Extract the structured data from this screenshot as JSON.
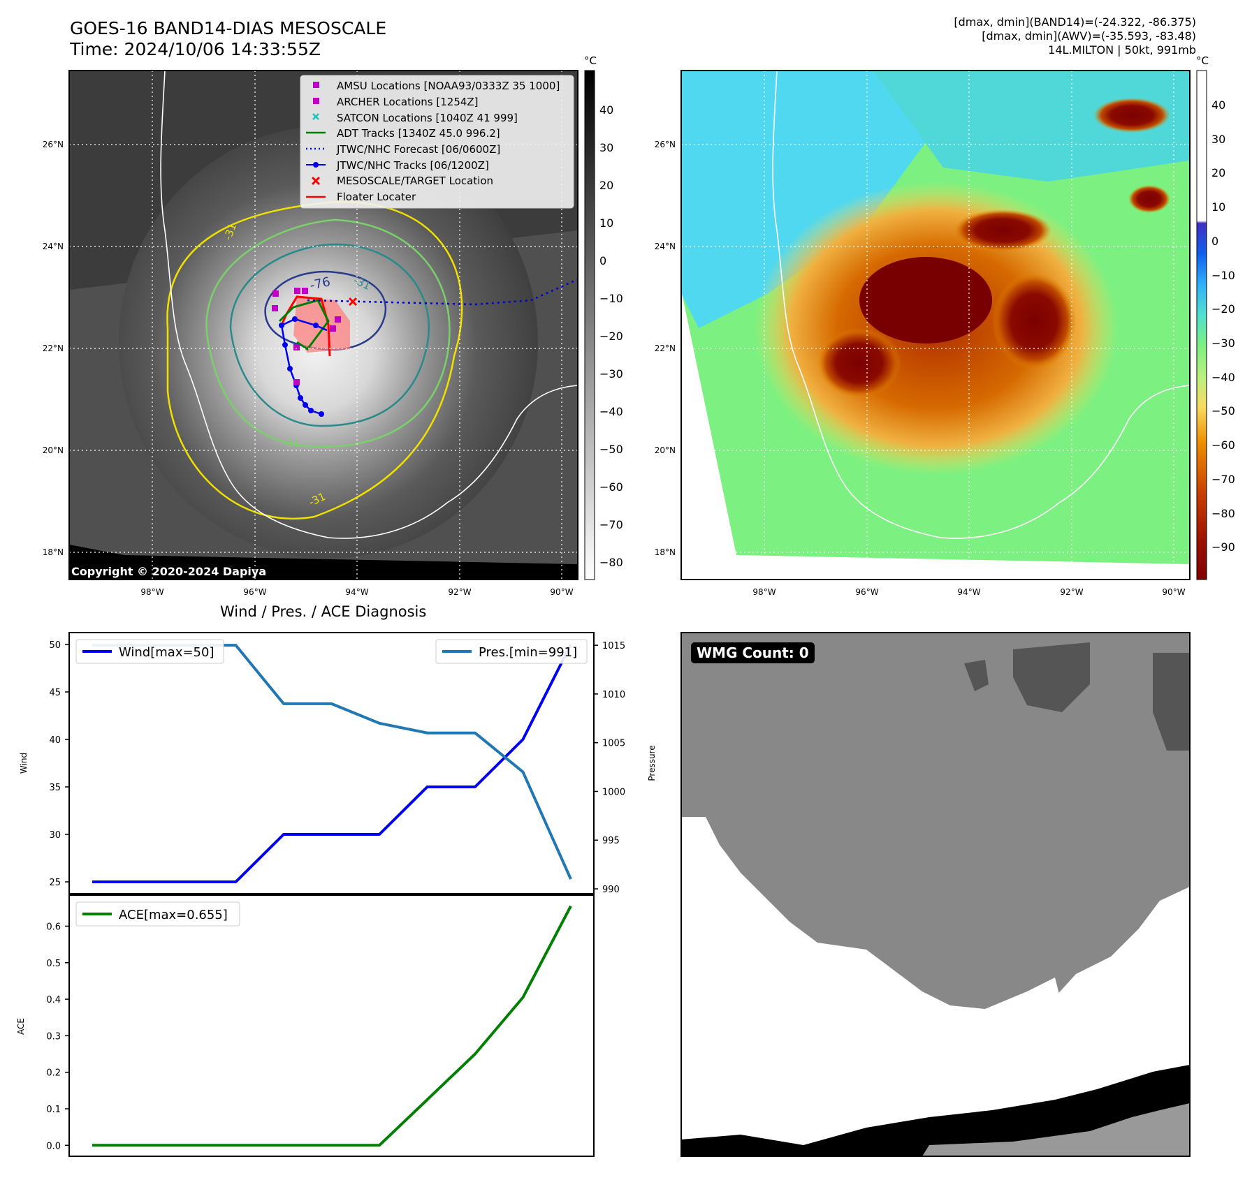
{
  "header": {
    "title_line1": "GOES-16 BAND14-DIAS MESOSCALE",
    "title_line2": "Time: 2024/10/06 14:33:55Z",
    "info_line1": "[dmax, dmin](BAND14)=(-24.322, -86.375)",
    "info_line2": "[dmax, dmin](AWV)=(-35.593, -83.48)",
    "info_line3": "14L.MILTON | 50kt, 991mb"
  },
  "colors": {
    "wind": "#0000ee",
    "pressure": "#1f77b4",
    "ace": "#008000",
    "contour_yellow": "#f0e000",
    "contour_green": "#7ad06a",
    "contour_teal": "#2a8a8a",
    "contour_navy": "#2a3a8a"
  },
  "map_panels": {
    "lon_labels": [
      "98°W",
      "96°W",
      "94°W",
      "92°W",
      "90°W"
    ],
    "lat_labels": [
      "26°N",
      "24°N",
      "22°N",
      "20°N",
      "18°N"
    ],
    "copyright": "Copyright © 2020-2024 Dapiya",
    "contour_labels": [
      "-76",
      "-31",
      "-31",
      "-31",
      "-31"
    ],
    "left_colorbar": {
      "unit": "°C",
      "ticks": [
        "40",
        "30",
        "20",
        "10",
        "0",
        "−10",
        "−20",
        "−30",
        "−40",
        "−50",
        "−60",
        "−70",
        "−80"
      ]
    },
    "right_colorbar": {
      "unit": "°C",
      "ticks": [
        "40",
        "30",
        "20",
        "10",
        "0",
        "−10",
        "−20",
        "−30",
        "−40",
        "−50",
        "−60",
        "−70",
        "−80",
        "−90"
      ]
    },
    "legend": [
      {
        "label": "AMSU Locations [NOAA93/0333Z 35 1000]",
        "icon": "magenta-square-icon"
      },
      {
        "label": "ARCHER Locations [1254Z]",
        "icon": "magenta-square-icon"
      },
      {
        "label": "SATCON Locations [1040Z 41 999]",
        "icon": "cyan-x-icon"
      },
      {
        "label": "ADT Tracks [1340Z 45.0 996.2]",
        "icon": "green-line-icon"
      },
      {
        "label": "JTWC/NHC Forecast [06/0600Z]",
        "icon": "blue-dotted-line-icon"
      },
      {
        "label": "JTWC/NHC Tracks [06/1200Z]",
        "icon": "blue-dot-line-icon"
      },
      {
        "label": "MESOSCALE/TARGET Location",
        "icon": "red-x-icon"
      },
      {
        "label": "Floater Locater",
        "icon": "red-line-icon"
      }
    ]
  },
  "wmg": {
    "label": "WMG Count: 0"
  },
  "chart_data": [
    {
      "type": "line",
      "title": "Wind / Pres. / ACE Diagnosis",
      "x": [
        0,
        1,
        2,
        3,
        4,
        5,
        6,
        7,
        8,
        9,
        10
      ],
      "series": [
        {
          "name": "Wind[max=50]",
          "axis": "left",
          "values": [
            25,
            25,
            25,
            25,
            30,
            30,
            30,
            35,
            35,
            40,
            50
          ]
        },
        {
          "name": "Pres.[min=991]",
          "axis": "right",
          "values": [
            1015,
            1015,
            1015,
            1015,
            1009,
            1009,
            1007,
            1006,
            1006,
            1002,
            991
          ]
        }
      ],
      "ylabel": "Wind",
      "ylabel_right": "Pressure",
      "ylim": [
        23.75,
        51.25
      ],
      "ylim_right": [
        989.5,
        1016.3
      ],
      "yticks": [
        25,
        30,
        35,
        40,
        45,
        50
      ],
      "yticks_right": [
        990,
        995,
        1000,
        1005,
        1010,
        1015
      ]
    },
    {
      "type": "line",
      "x": [
        0,
        1,
        2,
        3,
        4,
        5,
        6,
        7,
        8,
        9,
        10
      ],
      "series": [
        {
          "name": "ACE[max=0.655]",
          "values": [
            0,
            0,
            0,
            0,
            0,
            0,
            0,
            0.125,
            0.25,
            0.405,
            0.655
          ]
        }
      ],
      "ylabel": "ACE",
      "ylim": [
        -0.03,
        0.685
      ],
      "yticks": [
        "0.0",
        "0.1",
        "0.2",
        "0.3",
        "0.4",
        "0.5",
        "0.6"
      ]
    }
  ]
}
